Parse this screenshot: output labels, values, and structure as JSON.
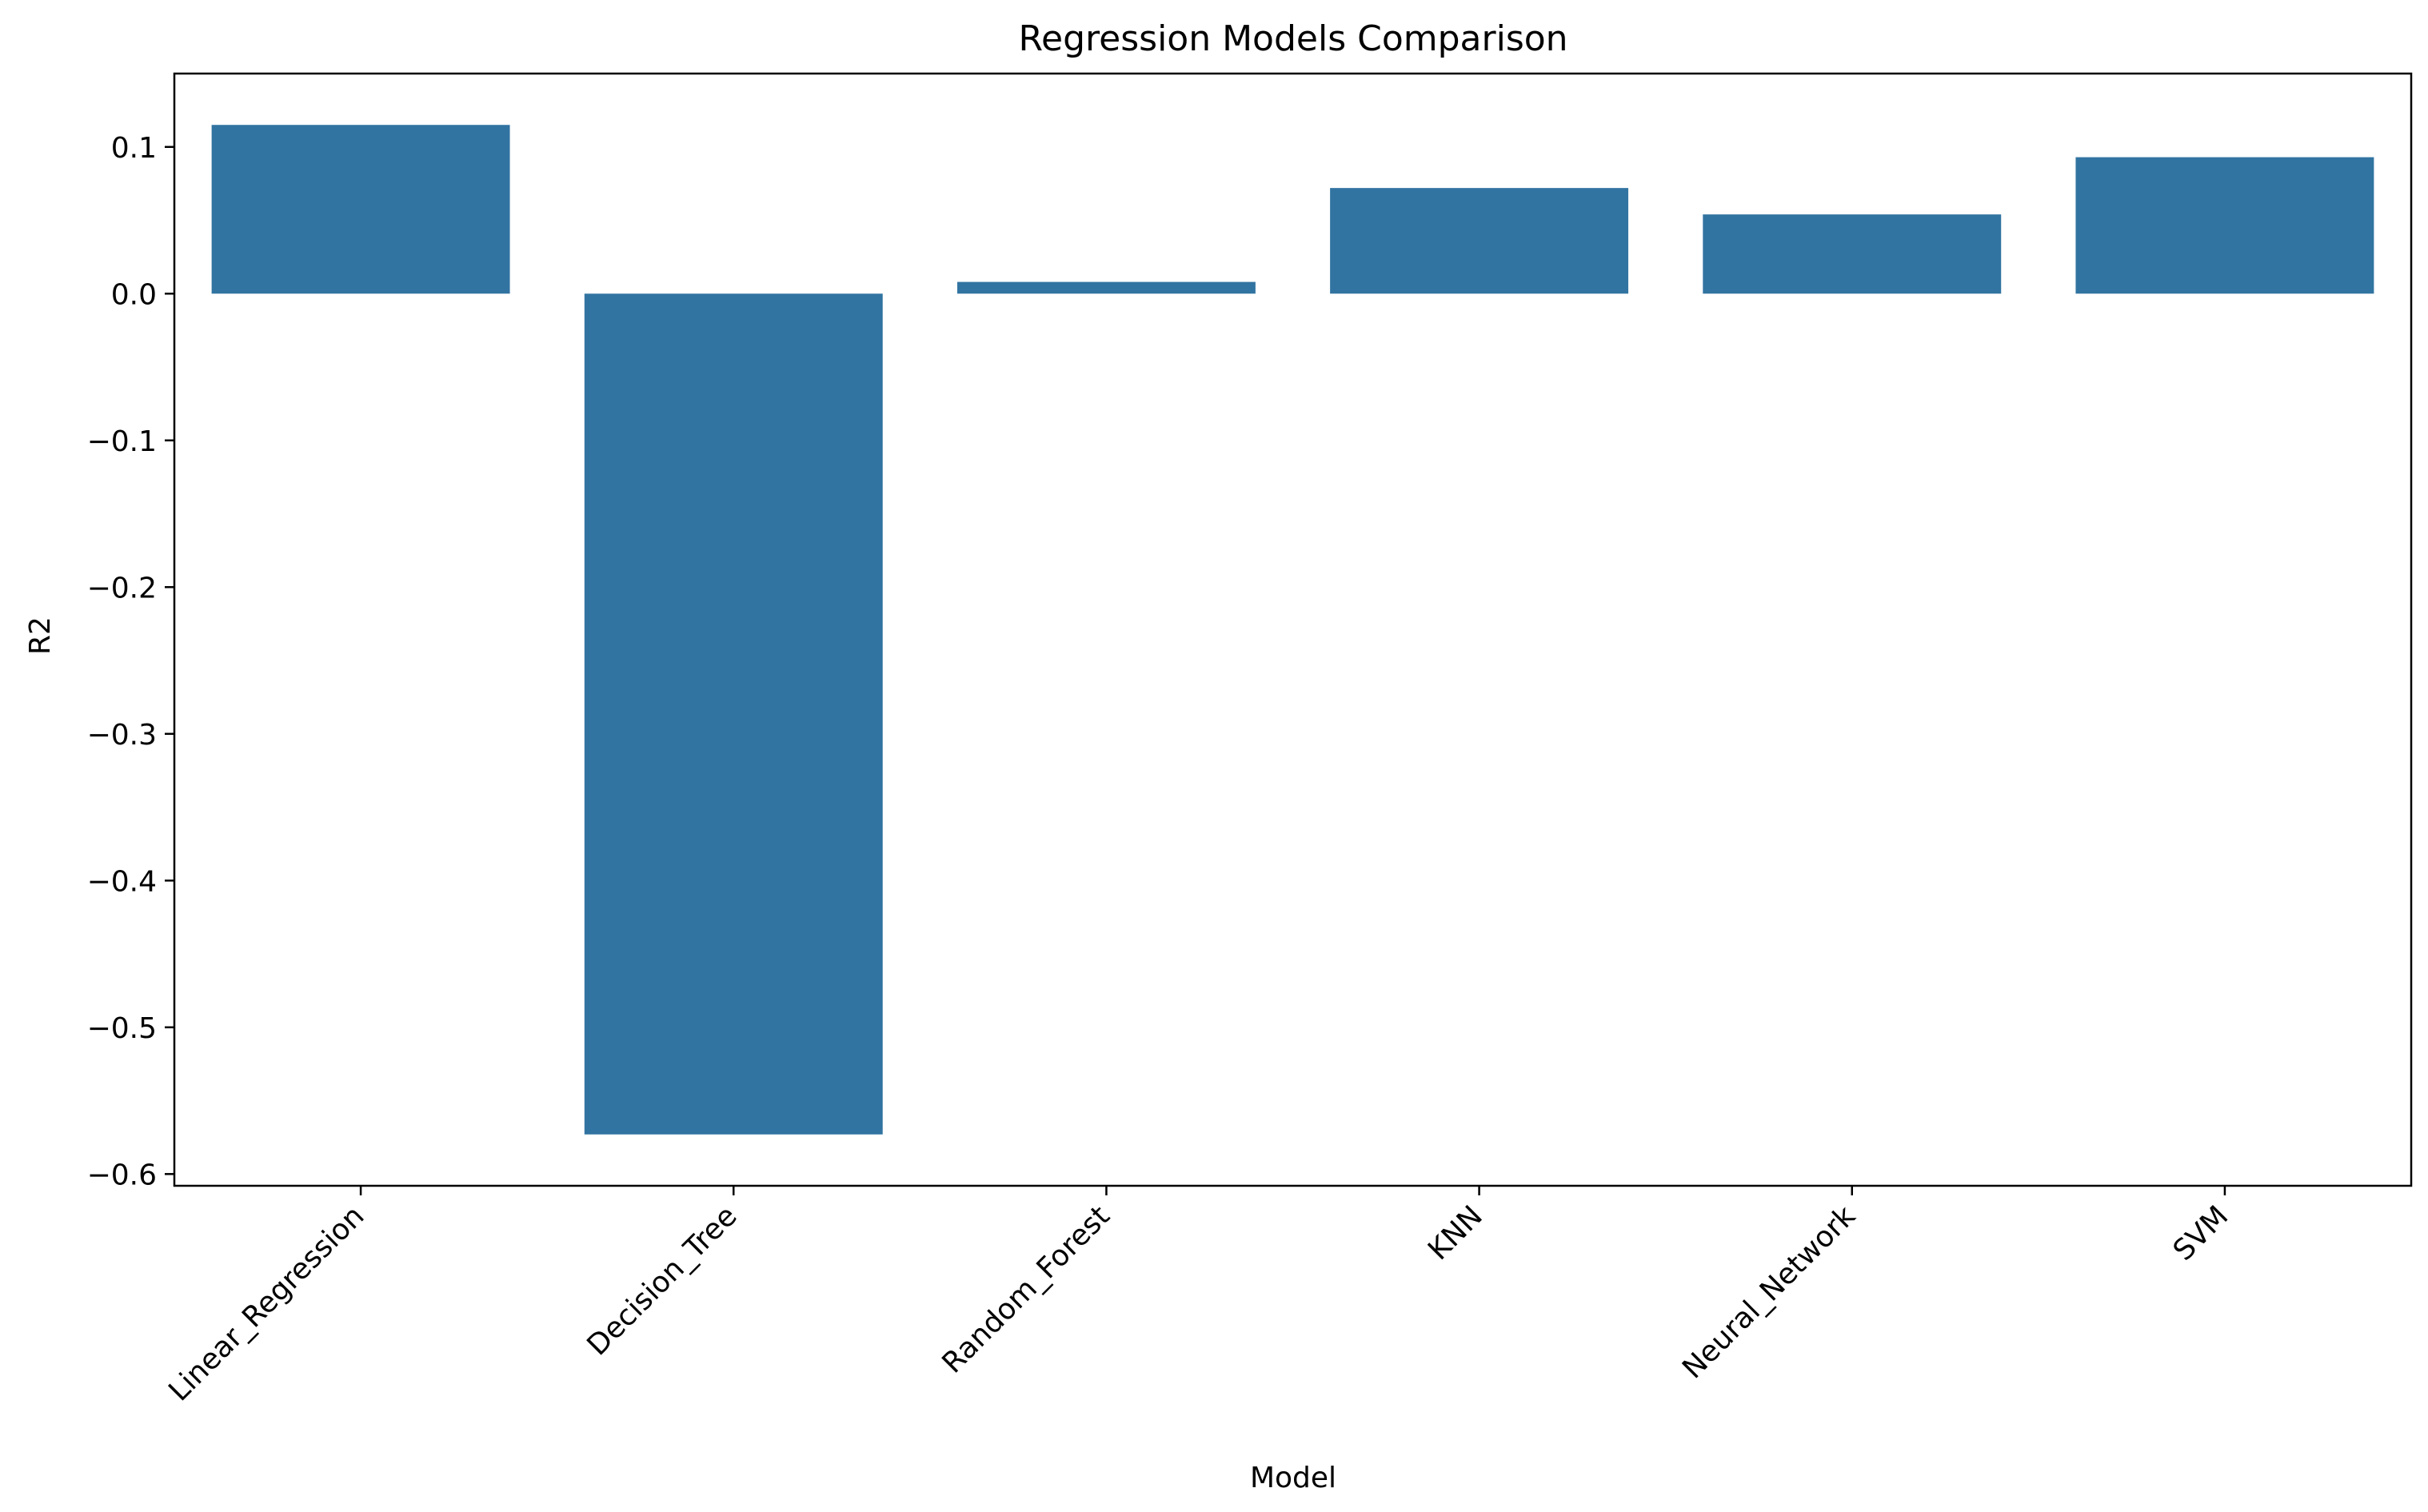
{
  "chart_data": {
    "type": "bar",
    "title": "Regression Models Comparison",
    "xlabel": "Model",
    "ylabel": "R2",
    "categories": [
      "Linear_Regression",
      "Decision_Tree",
      "Random_Forest",
      "KNN",
      "Neural_Network",
      "SVM"
    ],
    "values": [
      0.115,
      -0.573,
      0.008,
      0.072,
      0.054,
      0.093
    ],
    "ylim": [
      -0.608,
      0.15
    ],
    "yticks": [
      0.1,
      0.0,
      -0.1,
      -0.2,
      -0.3,
      -0.4,
      -0.5,
      -0.6
    ],
    "ytick_labels": [
      "0.1",
      "0.0",
      "−0.1",
      "−0.2",
      "−0.3",
      "−0.4",
      "−0.5",
      "−0.6"
    ],
    "bar_color": "#3274a1",
    "grid": false,
    "legend": "none",
    "xtick_rotation_deg": 45
  }
}
